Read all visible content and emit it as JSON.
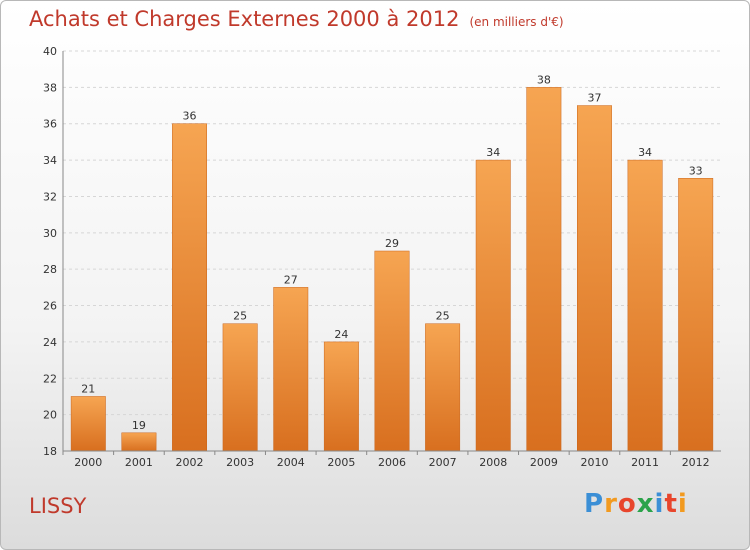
{
  "chart_data": {
    "type": "bar",
    "title": "Achats et Charges Externes 2000 à 2012",
    "subtitle": "(en milliers d'€)",
    "categories": [
      "2000",
      "2001",
      "2002",
      "2003",
      "2004",
      "2005",
      "2006",
      "2007",
      "2008",
      "2009",
      "2010",
      "2011",
      "2012"
    ],
    "values": [
      21,
      19,
      36,
      25,
      27,
      24,
      29,
      25,
      34,
      38,
      37,
      34,
      33
    ],
    "yticks": [
      18,
      20,
      22,
      24,
      26,
      28,
      30,
      32,
      34,
      36,
      38,
      40
    ],
    "ylim": [
      18,
      40
    ],
    "grid": true,
    "bar_color": "#e8863a"
  },
  "commune": "LISSY",
  "logo": {
    "letters": [
      "P",
      "r",
      "o",
      "x",
      "i",
      "t",
      "i"
    ],
    "colors": [
      "#3b8fd6",
      "#f29a1f",
      "#e8452c",
      "#2aa34a",
      "#3b8fd6",
      "#e8452c",
      "#f29a1f"
    ]
  }
}
